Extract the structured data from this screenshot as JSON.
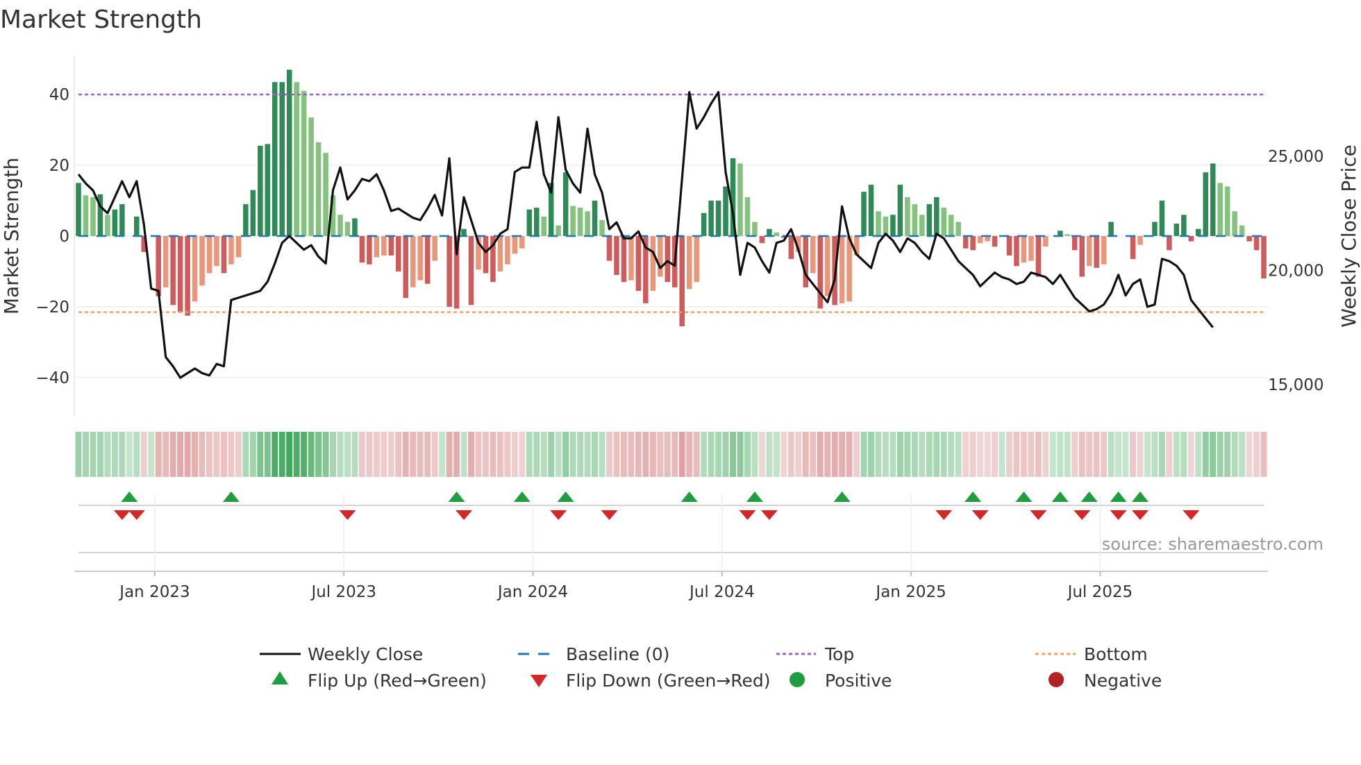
{
  "chart_data": {
    "type": "bar",
    "title": "Market Strength",
    "ylabel_left": "Market Strength",
    "ylabel_right": "Weekly Close Price",
    "source": "source: sharemaestro.com",
    "x_tick_labels": [
      "Jan 2023",
      "Jul 2023",
      "Jan 2024",
      "Jul 2024",
      "Jan 2025",
      "Jul 2025"
    ],
    "x_tick_weeks": [
      10.5,
      36.5,
      62.5,
      88.5,
      114.5,
      140.5
    ],
    "left_axis": {
      "ylim": [
        -51,
        51
      ],
      "ticks": [
        40,
        20,
        0,
        -20,
        -40
      ],
      "tick_labels": [
        "40",
        "20",
        "0",
        "−20",
        "−40"
      ]
    },
    "right_axis": {
      "ylim": [
        13600,
        29400
      ],
      "ticks": [
        25000,
        20000,
        15000
      ],
      "tick_labels": [
        "25,000",
        "20,000",
        "15,000"
      ]
    },
    "top_level": 40,
    "bottom_level": -21.5,
    "baseline": 0,
    "series": [
      {
        "name": "Market Strength",
        "kind": "bar",
        "values": [
          15,
          11.5,
          11,
          11.8,
          6,
          7.5,
          9,
          0,
          5.5,
          -4.5,
          0,
          -17,
          -14.5,
          -19.5,
          -21.5,
          -22.5,
          -18.5,
          -14,
          -10.5,
          -8.5,
          -10.5,
          -8,
          -6,
          9,
          13,
          25.5,
          26,
          43.5,
          43.5,
          47,
          43.5,
          41,
          33.5,
          26.5,
          23.5,
          11.5,
          6,
          4,
          5,
          -7.5,
          -8,
          -6,
          -5.5,
          -5.5,
          -10,
          -17.5,
          -14.5,
          -12.5,
          -13.5,
          -7,
          0,
          -20,
          -20.5,
          2,
          -19.5,
          -9.5,
          -10.5,
          -13,
          -10,
          -8,
          -5,
          -3.5,
          7.5,
          8,
          5.5,
          15,
          3,
          18,
          8.5,
          8,
          7,
          10,
          4.5,
          -7,
          -11,
          -13,
          -12.5,
          -15.5,
          -19,
          -15.5,
          -11.5,
          -13,
          -14.5,
          -25.5,
          -15,
          -13,
          6.5,
          10,
          10,
          14,
          22,
          20.5,
          11,
          4,
          -2,
          2,
          1,
          -0.5,
          -6.5,
          -4.5,
          -14.5,
          -10.5,
          -20.5,
          -17,
          -19.5,
          -19,
          -18.5,
          -5.5,
          12.5,
          14.5,
          7,
          5.5,
          6,
          14.5,
          11,
          9,
          6,
          9,
          11,
          8,
          6,
          4,
          -3.5,
          -4,
          -2,
          -1.5,
          -3,
          0,
          -5.5,
          -8.5,
          -7.5,
          -7,
          -11.5,
          -3,
          0,
          1.5,
          0.5,
          -4,
          -11.5,
          -8.5,
          -9,
          -8,
          4,
          0,
          0,
          -6.5,
          -2.5,
          0,
          4,
          10,
          -4,
          3.5,
          6,
          -1.5,
          2,
          18,
          20.5,
          15,
          14,
          7,
          3,
          -1.5,
          -4,
          -12
        ]
      },
      {
        "name": "Weekly Close",
        "kind": "line",
        "values": [
          24200,
          23800,
          23500,
          22800,
          22500,
          23200,
          23900,
          23200,
          23900,
          22000,
          19200,
          19100,
          16200,
          15800,
          15300,
          15500,
          15700,
          15500,
          15400,
          15900,
          15800,
          18700,
          18800,
          18900,
          19000,
          19100,
          19500,
          20300,
          21200,
          21500,
          21200,
          20900,
          21100,
          20600,
          20300,
          23500,
          24500,
          23100,
          23500,
          24000,
          23900,
          24200,
          23500,
          22600,
          22700,
          22500,
          22300,
          22200,
          22700,
          23300,
          22400,
          24900,
          20700,
          23200,
          22200,
          21200,
          20800,
          21100,
          21600,
          21800,
          24300,
          24500,
          24500,
          26500,
          24200,
          23400,
          26700,
          24400,
          23800,
          23400,
          26200,
          24200,
          23400,
          21800,
          22100,
          21400,
          21400,
          21700,
          21000,
          20800,
          20100,
          20400,
          20200,
          24000,
          27800,
          26200,
          26700,
          27300,
          27800,
          24300,
          22500,
          19800,
          21200,
          21000,
          20400,
          19900,
          21200,
          21300,
          21800,
          20900,
          19800,
          19400,
          19000,
          18600,
          19600,
          22800,
          21400,
          20700,
          20400,
          20100,
          21200,
          21600,
          21300,
          20800,
          21400,
          21200,
          20800,
          20500,
          21600,
          21400,
          20900,
          20400,
          20100,
          19800,
          19300,
          19600,
          19900,
          19700,
          19600,
          19400,
          19500,
          19900,
          19800,
          19700,
          19400,
          19800,
          19300,
          18800,
          18500,
          18200,
          18300,
          18500,
          19000,
          19800,
          18900,
          19400,
          19600,
          18400,
          18500,
          20500,
          20400,
          20200,
          19800,
          18700,
          18300,
          17900,
          17500
        ]
      },
      {
        "name": "Flip Up (Red→Green)",
        "kind": "marker",
        "weeks": [
          7,
          21,
          52,
          61,
          67,
          84,
          93,
          105,
          123,
          130,
          135,
          139,
          143,
          146
        ]
      },
      {
        "name": "Flip Down (Green→Red)",
        "kind": "marker",
        "weeks": [
          6,
          8,
          37,
          53,
          66,
          73,
          92,
          95,
          119,
          124,
          132,
          138,
          143,
          146,
          153
        ]
      }
    ],
    "legend": [
      "Weekly Close",
      "Baseline (0)",
      "Top",
      "Bottom",
      "Flip Up (Red→Green)",
      "Flip Down (Green→Red)",
      "Positive",
      "Negative"
    ],
    "colors": {
      "strong_green": "#2e8b57",
      "light_green": "#86c17f",
      "strong_red": "#cd5c5c",
      "light_red": "#e9967a",
      "line": "#111111",
      "baseline": "#1f77b4",
      "top": "#9467bd",
      "bottom": "#f4a460",
      "flip_up": "#1f9e3f",
      "flip_down": "#d62728",
      "positive": "#1f9e3f",
      "negative": "#b22222"
    }
  }
}
